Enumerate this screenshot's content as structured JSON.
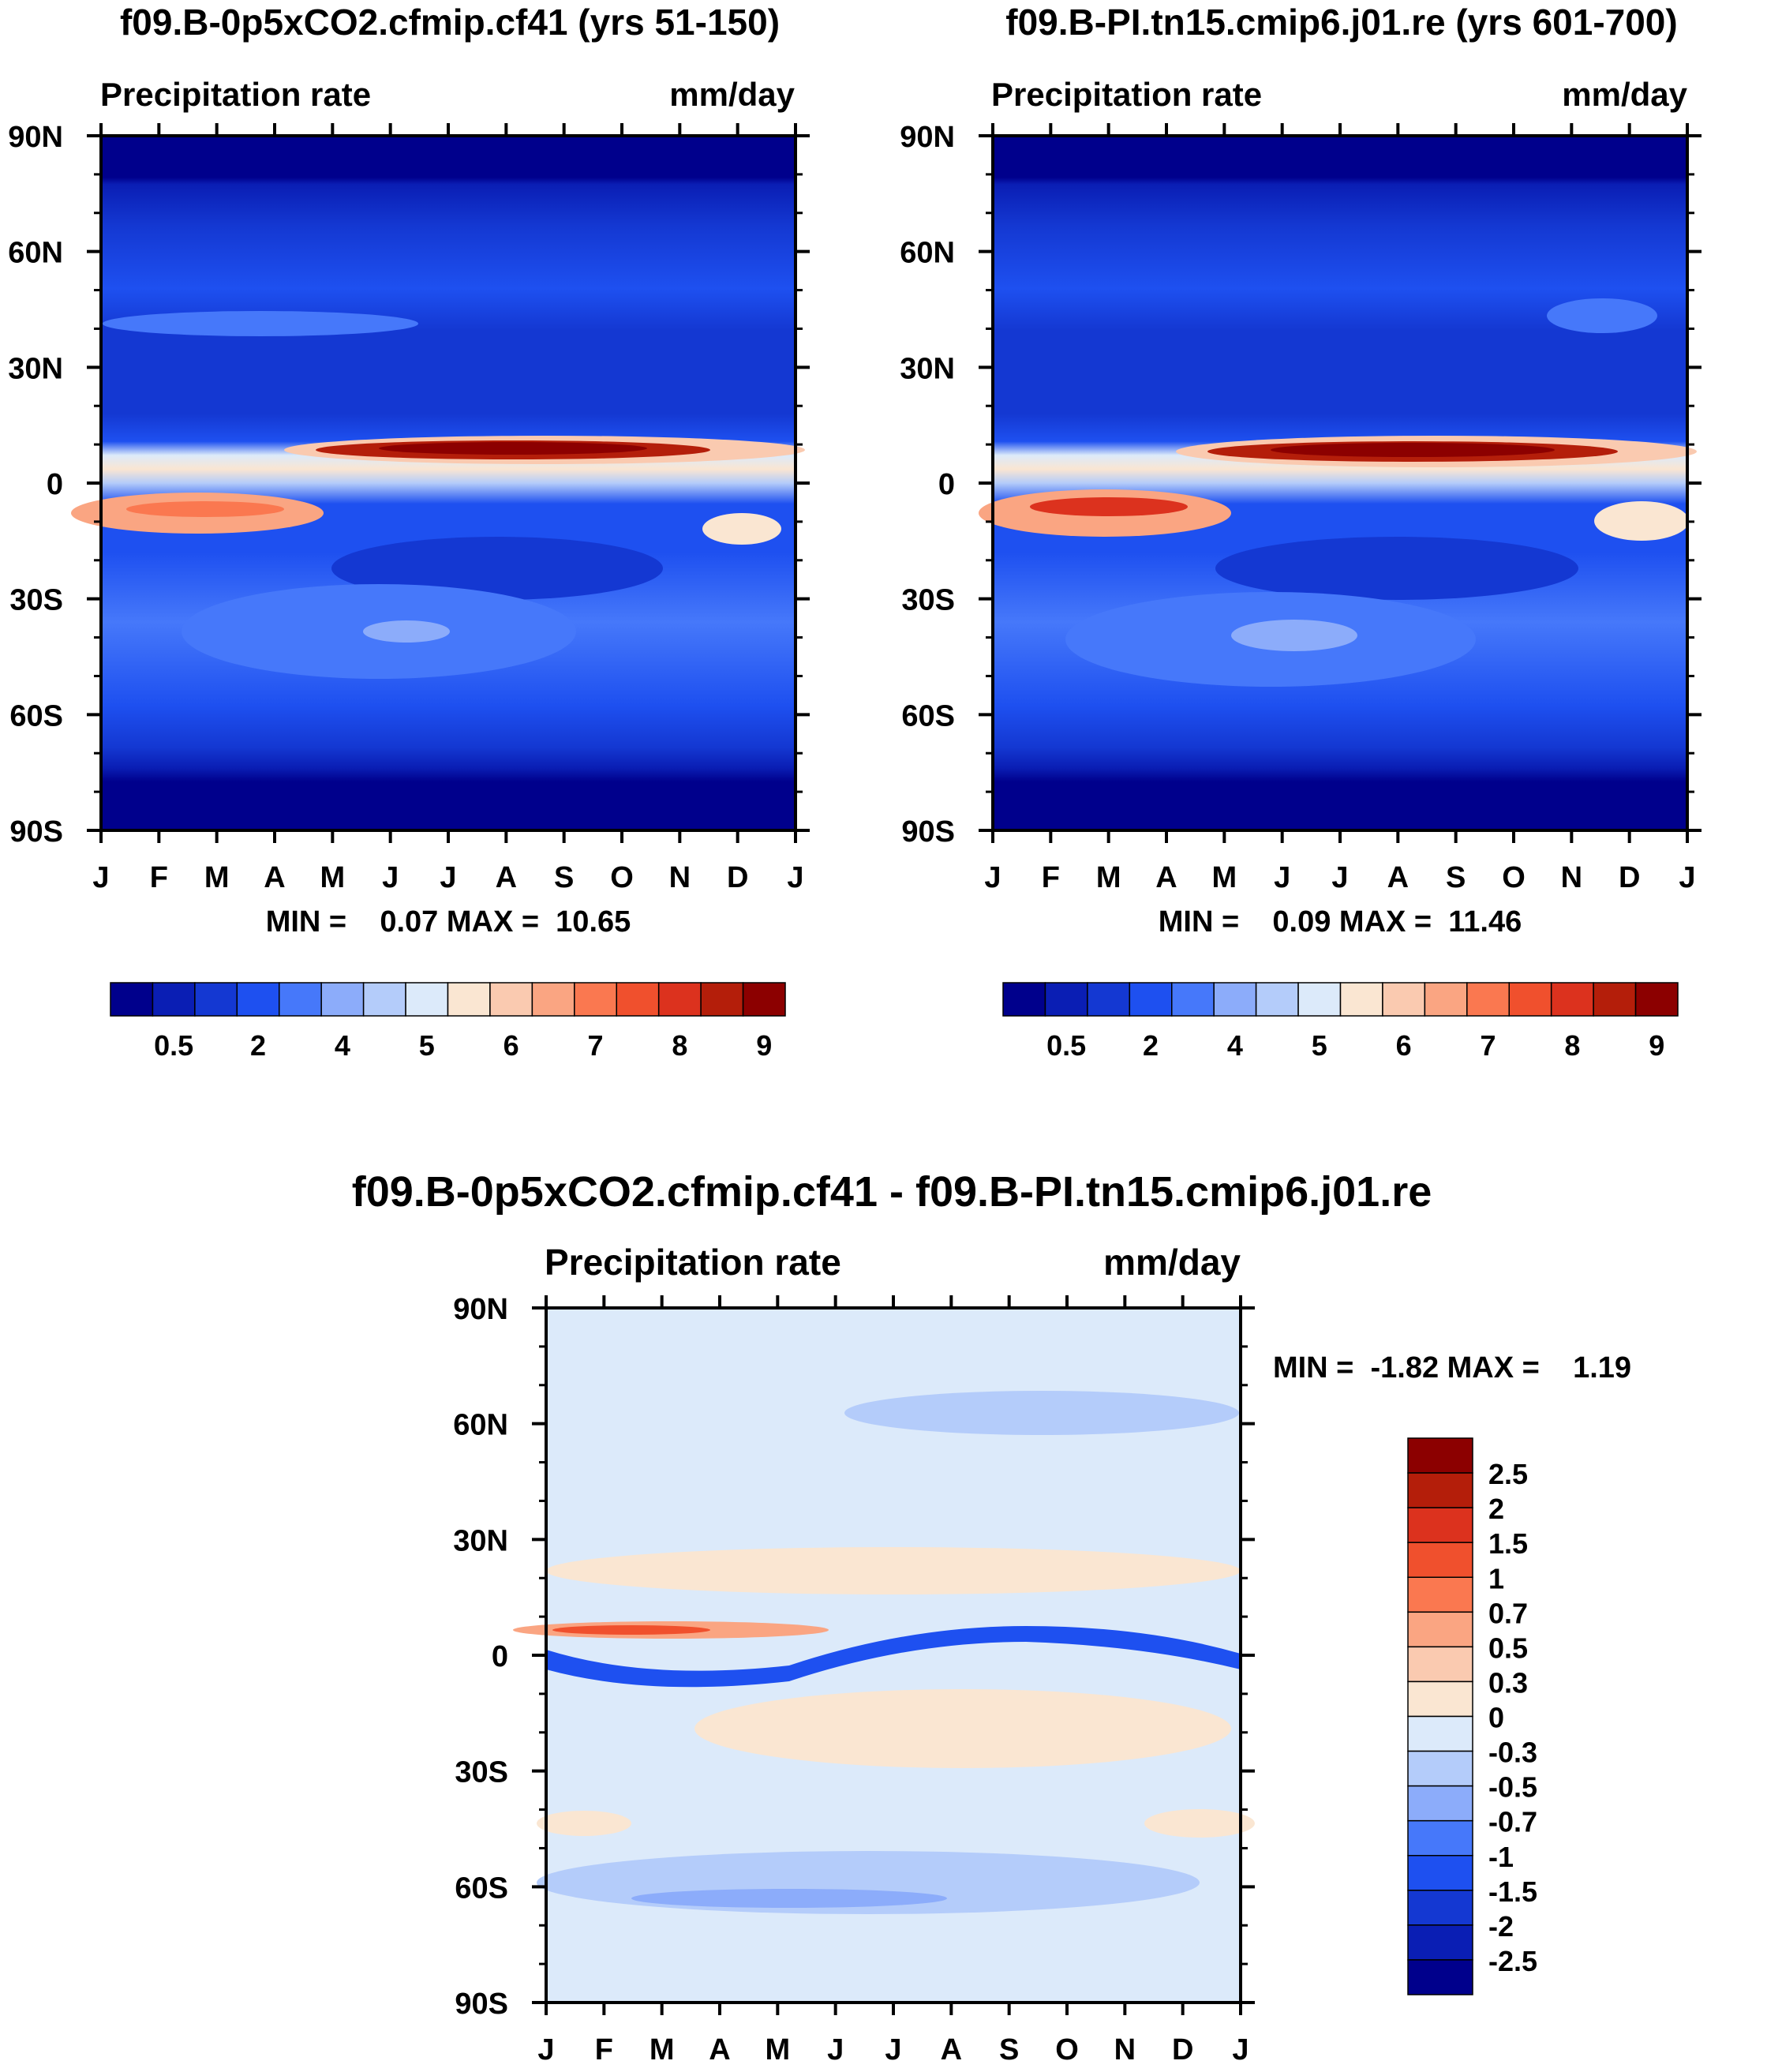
{
  "panels": [
    {
      "title": "f09.B-0p5xCO2.cfmip.cf41 (yrs 51-150)",
      "left_label": "Precipitation rate",
      "right_label": "mm/day",
      "min_max": "MIN =    0.07 MAX =  10.65",
      "colorbar_labels": [
        "0.5",
        "2",
        "4",
        "5",
        "6",
        "7",
        "8",
        "9"
      ]
    },
    {
      "title": "f09.B-PI.tn15.cmip6.j01.re (yrs 601-700)",
      "left_label": "Precipitation rate",
      "right_label": "mm/day",
      "min_max": "MIN =    0.09 MAX =  11.46",
      "colorbar_labels": [
        "0.5",
        "2",
        "4",
        "5",
        "6",
        "7",
        "8",
        "9"
      ]
    },
    {
      "title": "f09.B-0p5xCO2.cfmip.cf41 - f09.B-PI.tn15.cmip6.j01.re",
      "left_label": "Precipitation rate",
      "right_label": "mm/day",
      "min_max": "MIN =  -1.82 MAX =    1.19",
      "colorbar_labels": [
        "2.5",
        "2",
        "1.5",
        "1",
        "0.7",
        "0.5",
        "0.3",
        "0",
        "-0.3",
        "-0.5",
        "-0.7",
        "-1",
        "-1.5",
        "-2",
        "-2.5"
      ]
    }
  ],
  "y_tick_labels": [
    "90N",
    "60N",
    "30N",
    "0",
    "30S",
    "60S",
    "90S"
  ],
  "x_tick_labels": [
    "J",
    "F",
    "M",
    "A",
    "M",
    "J",
    "J",
    "A",
    "S",
    "O",
    "N",
    "D",
    "J"
  ],
  "colors": {
    "abs_scale": [
      "#00008c",
      "#0a1eb4",
      "#1438d2",
      "#1e50f0",
      "#4678fa",
      "#8cacfa",
      "#b4ccfa",
      "#dceafa",
      "#fae6d2",
      "#facab0",
      "#faa582",
      "#fa7850",
      "#f0502d",
      "#dc321e",
      "#b41e0a",
      "#8c0000"
    ],
    "diff_scale": [
      "#8c0000",
      "#b41e0a",
      "#dc321e",
      "#f0502d",
      "#fa7850",
      "#faa582",
      "#facab0",
      "#fae6d2",
      "#dceafa",
      "#b4ccfa",
      "#8cacfa",
      "#4678fa",
      "#1e50f0",
      "#1438d2",
      "#0a1eb4",
      "#00008c"
    ]
  },
  "chart_data": [
    {
      "type": "heatmap",
      "title": "f09.B-0p5xCO2.cfmip.cf41 (yrs 51-150)",
      "variable": "Precipitation rate",
      "units": "mm/day",
      "x": [
        "J",
        "F",
        "M",
        "A",
        "M",
        "J",
        "J",
        "A",
        "S",
        "O",
        "N",
        "D",
        "J"
      ],
      "y_range": [
        -90,
        90
      ],
      "min": 0.07,
      "max": 10.65,
      "colorbar_levels": [
        0.5,
        2,
        4,
        5,
        6,
        7,
        8,
        9
      ],
      "bands": [
        {
          "lat": [
            75,
            90
          ],
          "value": 0.3
        },
        {
          "lat": [
            60,
            75
          ],
          "value": 2
        },
        {
          "lat": [
            30,
            60
          ],
          "value": 4
        },
        {
          "lat": [
            15,
            30
          ],
          "value": 2
        },
        {
          "lat": [
            3,
            12
          ],
          "month": [
            5,
            11
          ],
          "value": 10
        },
        {
          "lat": [
            -15,
            -3
          ],
          "month": [
            0,
            4
          ],
          "value": 7
        },
        {
          "lat": [
            -30,
            -15
          ],
          "month": [
            4,
            9
          ],
          "value": 2
        },
        {
          "lat": [
            -60,
            -30
          ],
          "value": 4
        },
        {
          "lat": [
            -75,
            -60
          ],
          "value": 2
        },
        {
          "lat": [
            -90,
            -75
          ],
          "value": 0.3
        }
      ]
    },
    {
      "type": "heatmap",
      "title": "f09.B-PI.tn15.cmip6.j01.re (yrs 601-700)",
      "variable": "Precipitation rate",
      "units": "mm/day",
      "x": [
        "J",
        "F",
        "M",
        "A",
        "M",
        "J",
        "J",
        "A",
        "S",
        "O",
        "N",
        "D",
        "J"
      ],
      "y_range": [
        -90,
        90
      ],
      "min": 0.09,
      "max": 11.46,
      "colorbar_levels": [
        0.5,
        2,
        4,
        5,
        6,
        7,
        8,
        9
      ],
      "bands": [
        {
          "lat": [
            75,
            90
          ],
          "value": 0.3
        },
        {
          "lat": [
            60,
            75
          ],
          "value": 2
        },
        {
          "lat": [
            30,
            60
          ],
          "value": 4
        },
        {
          "lat": [
            15,
            30
          ],
          "value": 2
        },
        {
          "lat": [
            3,
            12
          ],
          "month": [
            5,
            11
          ],
          "value": 11
        },
        {
          "lat": [
            -15,
            -3
          ],
          "month": [
            0,
            4
          ],
          "value": 8
        },
        {
          "lat": [
            -30,
            -15
          ],
          "month": [
            4,
            9
          ],
          "value": 2
        },
        {
          "lat": [
            -60,
            -30
          ],
          "value": 4
        },
        {
          "lat": [
            -75,
            -60
          ],
          "value": 2
        },
        {
          "lat": [
            -90,
            -75
          ],
          "value": 0.3
        }
      ]
    },
    {
      "type": "heatmap",
      "title": "f09.B-0p5xCO2.cfmip.cf41 - f09.B-PI.tn15.cmip6.j01.re",
      "variable": "Precipitation rate",
      "units": "mm/day",
      "x": [
        "J",
        "F",
        "M",
        "A",
        "M",
        "J",
        "J",
        "A",
        "S",
        "O",
        "N",
        "D",
        "J"
      ],
      "y_range": [
        -90,
        90
      ],
      "min": -1.82,
      "max": 1.19,
      "colorbar_levels": [
        2.5,
        2,
        1.5,
        1,
        0.7,
        0.5,
        0.3,
        0,
        -0.3,
        -0.5,
        -0.7,
        -1,
        -1.5,
        -2,
        -2.5
      ],
      "bands": [
        {
          "lat": [
            15,
            30
          ],
          "value": 0.1
        },
        {
          "lat": [
            6,
            11
          ],
          "month": [
            0,
            5
          ],
          "value": 1.2
        },
        {
          "lat": [
            -5,
            8
          ],
          "value": -1.5
        },
        {
          "lat": [
            -30,
            -12
          ],
          "value": 0.1
        },
        {
          "lat": [
            -68,
            -50
          ],
          "value": -0.4
        }
      ]
    }
  ]
}
